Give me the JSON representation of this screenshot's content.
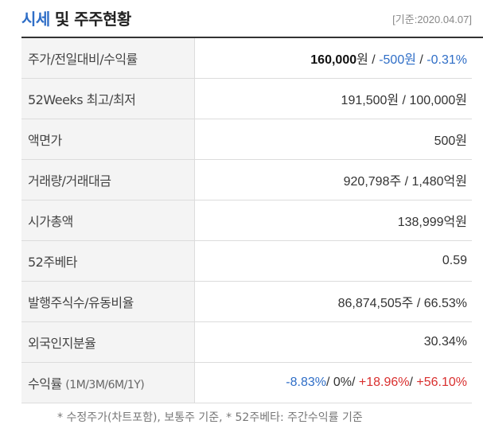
{
  "header": {
    "title_main": "시세",
    "title_rest": "및 주주현황",
    "base_date": "[기준:2020.04.07]"
  },
  "rows": [
    {
      "label": "주가/전일대비/수익률",
      "price": "160,000",
      "price_unit": "원",
      "sep1": " / ",
      "change": "-500원",
      "sep2": " / ",
      "change_pct": "-0.31%"
    },
    {
      "label": "52Weeks 최고/최저",
      "value": "191,500원 / 100,000원"
    },
    {
      "label": "액면가",
      "value": "500원"
    },
    {
      "label": "거래량/거래대금",
      "value": "920,798주 / 1,480억원"
    },
    {
      "label": "시가총액",
      "value": "138,999억원"
    },
    {
      "label": "52주베타",
      "value": "0.59"
    },
    {
      "label": "발행주식수/유동비율",
      "value": "86,874,505주 / 66.53%"
    },
    {
      "label": "외국인지분율",
      "value": "30.34%"
    },
    {
      "label": "수익률",
      "label_sub": "(1M/3M/6M/1Y)",
      "r1m": "-8.83%",
      "s1": "/ ",
      "r3m": "0%",
      "s2": "/ ",
      "r6m": "+18.96%",
      "s3": "/ ",
      "r1y": "+56.10%"
    }
  ],
  "footnote": "* 수정주가(차트포함), 보통주 기준, * 52주베타: 주간수익률 기준",
  "colors": {
    "accent": "#2f6ec7",
    "negative": "#2f6ec7",
    "positive": "#d9302f"
  }
}
